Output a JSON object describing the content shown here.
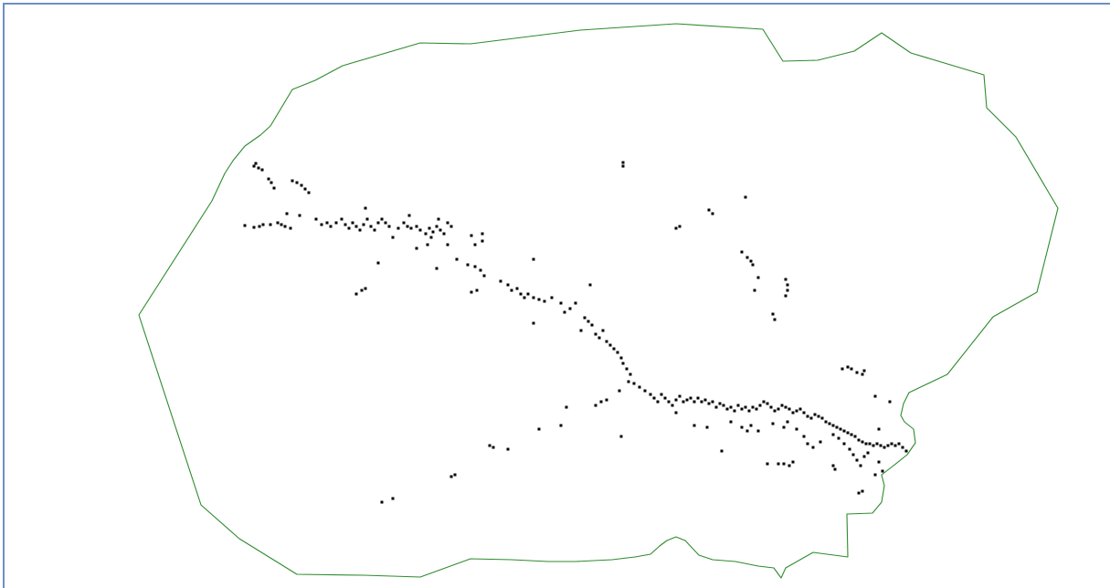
{
  "map": {
    "boundary_color": "#2e8b2e",
    "point_color": "#000000",
    "frame_color": "#6f8fc7",
    "background": "#ffffff"
  }
}
